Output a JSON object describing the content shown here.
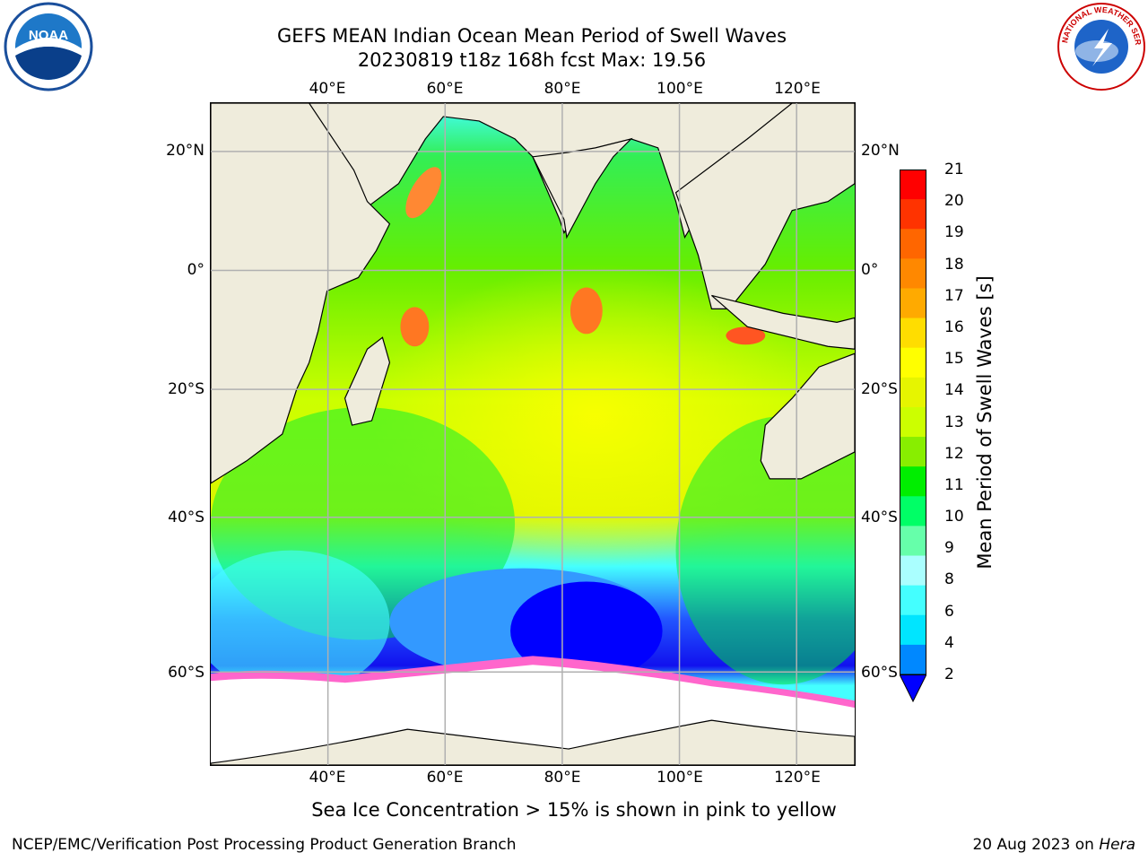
{
  "header": {
    "title_line1": "GEFS MEAN Indian Ocean Mean Period of Swell Waves",
    "title_line2": "20230819 t18z 168h fcst   Max: 19.56"
  },
  "logos": {
    "left": {
      "icon": "noaa-logo",
      "text": "NOAA"
    },
    "right": {
      "icon": "nws-logo",
      "text": "NATIONAL WEATHER SERVICE"
    }
  },
  "map": {
    "lon_ticks": [
      "40°E",
      "60°E",
      "80°E",
      "100°E",
      "120°E"
    ],
    "lat_ticks": [
      "20°N",
      "0°",
      "20°S",
      "40°S",
      "60°S"
    ],
    "colors": {
      "land": "#efecdc",
      "ice": "#ffffff",
      "grid": "#b0b0b0"
    }
  },
  "colorbar": {
    "title": "Mean Period of Swell Waves [s]",
    "labels": [
      "21",
      "20",
      "19",
      "18",
      "17",
      "16",
      "15",
      "14",
      "13",
      "12",
      "11",
      "10",
      "9",
      "8",
      "6",
      "4",
      "2"
    ],
    "colors": [
      "#ff0000",
      "#ff3300",
      "#ff6600",
      "#ff8800",
      "#ffaa00",
      "#ffdd00",
      "#ffff00",
      "#e6f500",
      "#ccff00",
      "#88ee00",
      "#00ee00",
      "#00ff66",
      "#66ffaa",
      "#aaffff",
      "#44ffff",
      "#00e5ff",
      "#0088ff"
    ],
    "extend_color": "#0000ff"
  },
  "footer": {
    "note": "Sea Ice Concentration > 15% is shown in pink to yellow",
    "credit": "NCEP/EMC/Verification Post Processing Product Generation Branch",
    "date_prefix": "20 Aug 2023 on",
    "machine": "Hera"
  }
}
